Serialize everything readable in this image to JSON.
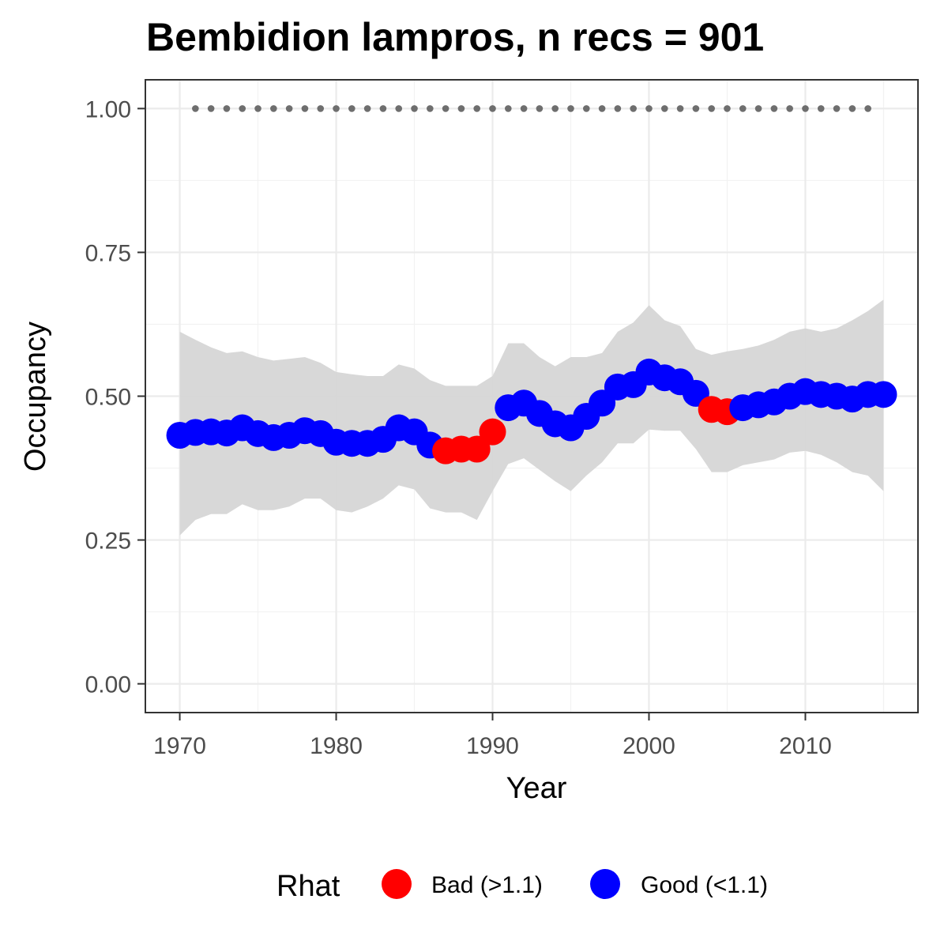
{
  "chart_data": {
    "type": "scatter",
    "title": "Bembidion lampros, n recs = 901",
    "xlabel": "Year",
    "ylabel": "Occupancy",
    "xlim": [
      1967.8,
      2017.2
    ],
    "ylim": [
      -0.05,
      1.05
    ],
    "x_ticks": [
      1970,
      1980,
      1990,
      2000,
      2010
    ],
    "x_tick_labels": [
      "1970",
      "1980",
      "1990",
      "2000",
      "2010"
    ],
    "y_ticks": [
      0,
      0.25,
      0.5,
      0.75,
      1
    ],
    "y_tick_labels": [
      "0.00",
      "0.25",
      "0.50",
      "0.75",
      "1.00"
    ],
    "grid": true,
    "legend": {
      "title": "Rhat",
      "position": "bottom",
      "entries": [
        {
          "label": "Bad (>1.1)",
          "color": "#ff0000"
        },
        {
          "label": "Good (<1.1)",
          "color": "#0000ff"
        }
      ]
    },
    "colors": {
      "bad": "#ff0000",
      "good": "#0000ff",
      "ribbon": "#d6d6d6",
      "reference": "#6e6e6e"
    },
    "series": [
      {
        "legend_key": "rhat",
        "x": [
          1970,
          1971,
          1972,
          1973,
          1974,
          1975,
          1976,
          1977,
          1978,
          1979,
          1980,
          1981,
          1982,
          1983,
          1984,
          1985,
          1986,
          1987,
          1988,
          1989,
          1990,
          1991,
          1992,
          1993,
          1994,
          1995,
          1996,
          1997,
          1998,
          1999,
          2000,
          2001,
          2002,
          2003,
          2004,
          2005,
          2006,
          2007,
          2008,
          2009,
          2010,
          2011,
          2012,
          2013,
          2014,
          2015
        ],
        "y": [
          0.432,
          0.437,
          0.438,
          0.436,
          0.445,
          0.435,
          0.428,
          0.432,
          0.44,
          0.435,
          0.42,
          0.418,
          0.418,
          0.425,
          0.445,
          0.438,
          0.415,
          0.405,
          0.408,
          0.408,
          0.438,
          0.48,
          0.488,
          0.47,
          0.452,
          0.445,
          0.465,
          0.488,
          0.516,
          0.52,
          0.542,
          0.532,
          0.525,
          0.505,
          0.477,
          0.473,
          0.48,
          0.485,
          0.49,
          0.5,
          0.508,
          0.503,
          0.5,
          0.495,
          0.503,
          0.503
        ],
        "rhat": [
          "good",
          "good",
          "good",
          "good",
          "good",
          "good",
          "good",
          "good",
          "good",
          "good",
          "good",
          "good",
          "good",
          "good",
          "good",
          "good",
          "good",
          "bad",
          "bad",
          "bad",
          "bad",
          "good",
          "good",
          "good",
          "good",
          "good",
          "good",
          "good",
          "good",
          "good",
          "good",
          "good",
          "good",
          "good",
          "bad",
          "bad",
          "good",
          "good",
          "good",
          "good",
          "good",
          "good",
          "good",
          "good",
          "good",
          "good"
        ],
        "lower": [
          0.258,
          0.285,
          0.295,
          0.295,
          0.312,
          0.302,
          0.302,
          0.308,
          0.322,
          0.322,
          0.302,
          0.298,
          0.308,
          0.322,
          0.345,
          0.338,
          0.305,
          0.298,
          0.298,
          0.285,
          0.335,
          0.382,
          0.392,
          0.372,
          0.352,
          0.335,
          0.362,
          0.385,
          0.418,
          0.418,
          0.442,
          0.44,
          0.44,
          0.408,
          0.368,
          0.368,
          0.38,
          0.385,
          0.39,
          0.402,
          0.405,
          0.398,
          0.385,
          0.368,
          0.362,
          0.335
        ],
        "upper": [
          0.612,
          0.598,
          0.585,
          0.575,
          0.578,
          0.568,
          0.562,
          0.565,
          0.568,
          0.558,
          0.542,
          0.538,
          0.535,
          0.535,
          0.555,
          0.548,
          0.528,
          0.518,
          0.518,
          0.518,
          0.535,
          0.592,
          0.592,
          0.568,
          0.552,
          0.568,
          0.568,
          0.575,
          0.612,
          0.628,
          0.658,
          0.632,
          0.622,
          0.582,
          0.572,
          0.578,
          0.582,
          0.588,
          0.598,
          0.612,
          0.618,
          0.612,
          0.618,
          0.632,
          0.648,
          0.668
        ]
      },
      {
        "legend_key": "reference",
        "x": [
          1971,
          1972,
          1973,
          1974,
          1975,
          1976,
          1977,
          1978,
          1979,
          1980,
          1981,
          1982,
          1983,
          1984,
          1985,
          1986,
          1987,
          1988,
          1989,
          1990,
          1991,
          1992,
          1993,
          1994,
          1995,
          1996,
          1997,
          1998,
          1999,
          2000,
          2001,
          2002,
          2003,
          2004,
          2005,
          2006,
          2007,
          2008,
          2009,
          2010,
          2011,
          2012,
          2013,
          2014
        ],
        "y": [
          1,
          1,
          1,
          1,
          1,
          1,
          1,
          1,
          1,
          1,
          1,
          1,
          1,
          1,
          1,
          1,
          1,
          1,
          1,
          1,
          1,
          1,
          1,
          1,
          1,
          1,
          1,
          1,
          1,
          1,
          1,
          1,
          1,
          1,
          1,
          1,
          1,
          1,
          1,
          1,
          1,
          1,
          1,
          1
        ]
      }
    ]
  }
}
